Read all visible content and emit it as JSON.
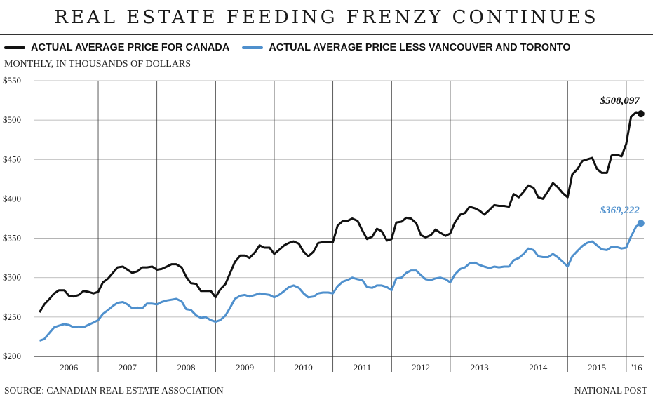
{
  "title": "REAL ESTATE FEEDING FRENZY CONTINUES",
  "subtitle": "MONTHLY, IN THOUSANDS OF DOLLARS",
  "source": "SOURCE: CANADIAN REAL ESTATE ASSOCIATION",
  "credit": "NATIONAL POST",
  "colors": {
    "canada": "#111111",
    "less": "#4f90cd",
    "grid": "#aaaaaa",
    "axis": "#333333"
  },
  "chart_data": {
    "type": "line",
    "ylim": [
      200,
      550
    ],
    "y_ticks": [
      200,
      250,
      300,
      350,
      400,
      450,
      500,
      550
    ],
    "y_tick_labels": [
      "$200",
      "$250",
      "$300",
      "$350",
      "$400",
      "$450",
      "$500",
      "$550"
    ],
    "x_range": [
      2005.9,
      2016.3
    ],
    "year_labels": [
      {
        "label": "2006",
        "x": 2006.5
      },
      {
        "label": "2007",
        "x": 2007.5
      },
      {
        "label": "2008",
        "x": 2008.5
      },
      {
        "label": "2009",
        "x": 2009.5
      },
      {
        "label": "2010",
        "x": 2010.5
      },
      {
        "label": "2011",
        "x": 2011.5
      },
      {
        "label": "2012",
        "x": 2012.5
      },
      {
        "label": "2013",
        "x": 2013.5
      },
      {
        "label": "2014",
        "x": 2014.5
      },
      {
        "label": "2015",
        "x": 2015.5
      },
      {
        "label": "'16",
        "x": 2016.18
      }
    ],
    "year_boundaries": [
      2007,
      2008,
      2009,
      2010,
      2011,
      2012,
      2013,
      2014,
      2015,
      2016
    ],
    "series": [
      {
        "name": "ACTUAL AVERAGE PRICE FOR CANADA",
        "annotation": "$508,097",
        "points": [
          [
            2006.0,
            256
          ],
          [
            2006.08,
            266
          ],
          [
            2006.17,
            273
          ],
          [
            2006.25,
            280
          ],
          [
            2006.33,
            284
          ],
          [
            2006.42,
            284
          ],
          [
            2006.5,
            277
          ],
          [
            2006.58,
            276
          ],
          [
            2006.67,
            278
          ],
          [
            2006.75,
            283
          ],
          [
            2006.83,
            282
          ],
          [
            2006.92,
            280
          ],
          [
            2007.0,
            282
          ],
          [
            2007.08,
            294
          ],
          [
            2007.17,
            299
          ],
          [
            2007.25,
            306
          ],
          [
            2007.33,
            313
          ],
          [
            2007.42,
            314
          ],
          [
            2007.5,
            310
          ],
          [
            2007.58,
            306
          ],
          [
            2007.67,
            308
          ],
          [
            2007.75,
            313
          ],
          [
            2007.83,
            313
          ],
          [
            2007.92,
            314
          ],
          [
            2008.0,
            310
          ],
          [
            2008.08,
            311
          ],
          [
            2008.17,
            314
          ],
          [
            2008.25,
            317
          ],
          [
            2008.33,
            317
          ],
          [
            2008.42,
            313
          ],
          [
            2008.5,
            301
          ],
          [
            2008.58,
            293
          ],
          [
            2008.67,
            292
          ],
          [
            2008.75,
            283
          ],
          [
            2008.83,
            283
          ],
          [
            2008.92,
            283
          ],
          [
            2009.0,
            275
          ],
          [
            2009.08,
            285
          ],
          [
            2009.17,
            292
          ],
          [
            2009.25,
            306
          ],
          [
            2009.33,
            320
          ],
          [
            2009.42,
            328
          ],
          [
            2009.5,
            328
          ],
          [
            2009.58,
            325
          ],
          [
            2009.67,
            332
          ],
          [
            2009.75,
            341
          ],
          [
            2009.83,
            338
          ],
          [
            2009.92,
            338
          ],
          [
            2010.0,
            330
          ],
          [
            2010.08,
            335
          ],
          [
            2010.17,
            341
          ],
          [
            2010.25,
            344
          ],
          [
            2010.33,
            346
          ],
          [
            2010.42,
            343
          ],
          [
            2010.5,
            333
          ],
          [
            2010.58,
            327
          ],
          [
            2010.67,
            333
          ],
          [
            2010.75,
            344
          ],
          [
            2010.83,
            345
          ],
          [
            2010.92,
            345
          ],
          [
            2011.0,
            345
          ],
          [
            2011.08,
            366
          ],
          [
            2011.17,
            372
          ],
          [
            2011.25,
            372
          ],
          [
            2011.33,
            375
          ],
          [
            2011.42,
            372
          ],
          [
            2011.5,
            360
          ],
          [
            2011.58,
            349
          ],
          [
            2011.67,
            352
          ],
          [
            2011.75,
            362
          ],
          [
            2011.83,
            359
          ],
          [
            2011.92,
            347
          ],
          [
            2012.0,
            349
          ],
          [
            2012.08,
            370
          ],
          [
            2012.17,
            371
          ],
          [
            2012.25,
            376
          ],
          [
            2012.33,
            375
          ],
          [
            2012.42,
            369
          ],
          [
            2012.5,
            354
          ],
          [
            2012.58,
            351
          ],
          [
            2012.67,
            354
          ],
          [
            2012.75,
            361
          ],
          [
            2012.83,
            357
          ],
          [
            2012.92,
            353
          ],
          [
            2013.0,
            356
          ],
          [
            2013.08,
            370
          ],
          [
            2013.17,
            380
          ],
          [
            2013.25,
            382
          ],
          [
            2013.33,
            390
          ],
          [
            2013.42,
            388
          ],
          [
            2013.5,
            385
          ],
          [
            2013.58,
            380
          ],
          [
            2013.67,
            386
          ],
          [
            2013.75,
            392
          ],
          [
            2013.83,
            391
          ],
          [
            2013.92,
            391
          ],
          [
            2014.0,
            390
          ],
          [
            2014.08,
            406
          ],
          [
            2014.17,
            402
          ],
          [
            2014.25,
            409
          ],
          [
            2014.33,
            417
          ],
          [
            2014.42,
            414
          ],
          [
            2014.5,
            402
          ],
          [
            2014.58,
            400
          ],
          [
            2014.67,
            410
          ],
          [
            2014.75,
            420
          ],
          [
            2014.83,
            415
          ],
          [
            2014.92,
            407
          ],
          [
            2015.0,
            402
          ],
          [
            2015.08,
            431
          ],
          [
            2015.17,
            438
          ],
          [
            2015.25,
            448
          ],
          [
            2015.33,
            450
          ],
          [
            2015.42,
            452
          ],
          [
            2015.5,
            438
          ],
          [
            2015.58,
            433
          ],
          [
            2015.67,
            433
          ],
          [
            2015.75,
            455
          ],
          [
            2015.83,
            456
          ],
          [
            2015.92,
            454
          ],
          [
            2016.0,
            470
          ],
          [
            2016.08,
            504
          ],
          [
            2016.17,
            510
          ],
          [
            2016.25,
            508
          ]
        ]
      },
      {
        "name": "ACTUAL AVERAGE PRICE LESS VANCOUVER AND TORONTO",
        "annotation": "$369,222",
        "points": [
          [
            2006.0,
            220
          ],
          [
            2006.08,
            222
          ],
          [
            2006.17,
            230
          ],
          [
            2006.25,
            237
          ],
          [
            2006.33,
            239
          ],
          [
            2006.42,
            241
          ],
          [
            2006.5,
            240
          ],
          [
            2006.58,
            237
          ],
          [
            2006.67,
            238
          ],
          [
            2006.75,
            237
          ],
          [
            2006.83,
            240
          ],
          [
            2006.92,
            243
          ],
          [
            2007.0,
            246
          ],
          [
            2007.08,
            254
          ],
          [
            2007.17,
            259
          ],
          [
            2007.25,
            264
          ],
          [
            2007.33,
            268
          ],
          [
            2007.42,
            269
          ],
          [
            2007.5,
            266
          ],
          [
            2007.58,
            261
          ],
          [
            2007.67,
            262
          ],
          [
            2007.75,
            261
          ],
          [
            2007.83,
            267
          ],
          [
            2007.92,
            267
          ],
          [
            2008.0,
            266
          ],
          [
            2008.08,
            269
          ],
          [
            2008.17,
            271
          ],
          [
            2008.25,
            272
          ],
          [
            2008.33,
            273
          ],
          [
            2008.42,
            270
          ],
          [
            2008.5,
            260
          ],
          [
            2008.58,
            259
          ],
          [
            2008.67,
            252
          ],
          [
            2008.75,
            249
          ],
          [
            2008.83,
            250
          ],
          [
            2008.92,
            246
          ],
          [
            2009.0,
            244
          ],
          [
            2009.08,
            246
          ],
          [
            2009.17,
            252
          ],
          [
            2009.25,
            262
          ],
          [
            2009.33,
            273
          ],
          [
            2009.42,
            277
          ],
          [
            2009.5,
            278
          ],
          [
            2009.58,
            276
          ],
          [
            2009.67,
            278
          ],
          [
            2009.75,
            280
          ],
          [
            2009.83,
            279
          ],
          [
            2009.92,
            278
          ],
          [
            2010.0,
            275
          ],
          [
            2010.08,
            278
          ],
          [
            2010.17,
            283
          ],
          [
            2010.25,
            288
          ],
          [
            2010.33,
            290
          ],
          [
            2010.42,
            287
          ],
          [
            2010.5,
            280
          ],
          [
            2010.58,
            275
          ],
          [
            2010.67,
            276
          ],
          [
            2010.75,
            280
          ],
          [
            2010.83,
            281
          ],
          [
            2010.92,
            281
          ],
          [
            2011.0,
            280
          ],
          [
            2011.08,
            289
          ],
          [
            2011.17,
            295
          ],
          [
            2011.25,
            297
          ],
          [
            2011.33,
            300
          ],
          [
            2011.42,
            298
          ],
          [
            2011.5,
            297
          ],
          [
            2011.58,
            288
          ],
          [
            2011.67,
            287
          ],
          [
            2011.75,
            290
          ],
          [
            2011.83,
            290
          ],
          [
            2011.92,
            288
          ],
          [
            2012.0,
            284
          ],
          [
            2012.08,
            299
          ],
          [
            2012.17,
            300
          ],
          [
            2012.25,
            306
          ],
          [
            2012.33,
            309
          ],
          [
            2012.42,
            309
          ],
          [
            2012.5,
            303
          ],
          [
            2012.58,
            298
          ],
          [
            2012.67,
            297
          ],
          [
            2012.75,
            299
          ],
          [
            2012.83,
            300
          ],
          [
            2012.92,
            298
          ],
          [
            2013.0,
            294
          ],
          [
            2013.08,
            304
          ],
          [
            2013.17,
            311
          ],
          [
            2013.25,
            313
          ],
          [
            2013.33,
            318
          ],
          [
            2013.42,
            319
          ],
          [
            2013.5,
            316
          ],
          [
            2013.58,
            314
          ],
          [
            2013.67,
            312
          ],
          [
            2013.75,
            314
          ],
          [
            2013.83,
            313
          ],
          [
            2013.92,
            314
          ],
          [
            2014.0,
            314
          ],
          [
            2014.08,
            322
          ],
          [
            2014.17,
            325
          ],
          [
            2014.25,
            330
          ],
          [
            2014.33,
            337
          ],
          [
            2014.42,
            335
          ],
          [
            2014.5,
            327
          ],
          [
            2014.58,
            326
          ],
          [
            2014.67,
            326
          ],
          [
            2014.75,
            330
          ],
          [
            2014.83,
            326
          ],
          [
            2014.92,
            320
          ],
          [
            2015.0,
            314
          ],
          [
            2015.08,
            327
          ],
          [
            2015.17,
            334
          ],
          [
            2015.25,
            340
          ],
          [
            2015.33,
            344
          ],
          [
            2015.42,
            346
          ],
          [
            2015.5,
            341
          ],
          [
            2015.58,
            336
          ],
          [
            2015.67,
            335
          ],
          [
            2015.75,
            339
          ],
          [
            2015.83,
            339
          ],
          [
            2015.92,
            337
          ],
          [
            2016.0,
            338
          ],
          [
            2016.08,
            352
          ],
          [
            2016.17,
            365
          ],
          [
            2016.25,
            369
          ]
        ]
      }
    ]
  }
}
